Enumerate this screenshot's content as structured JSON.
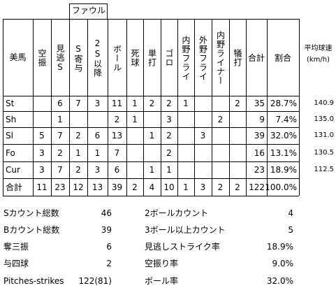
{
  "header": {
    "foul_label": "ファウル",
    "pitcher": "美馬",
    "columns": [
      "空振",
      "見逃S",
      "S寄与",
      "2S以降",
      "ボール",
      "死球",
      "単打",
      "ゴロ",
      "内野フライ",
      "外野フライ",
      "内野ライナー",
      "犠打",
      "合計",
      "割合"
    ],
    "avg_speed": "平均球速",
    "avg_speed_unit": "(km/h)"
  },
  "rows": [
    {
      "name": "St",
      "cells": [
        "",
        "6",
        "7",
        "3",
        "11",
        "1",
        "2",
        "2",
        "1",
        "",
        "",
        "2",
        "35",
        "28.7%"
      ],
      "speed": "140.9"
    },
    {
      "name": "Sh",
      "cells": [
        "",
        "1",
        "",
        "",
        "2",
        "1",
        "",
        "3",
        "",
        "",
        "2",
        "",
        "9",
        "7.4%"
      ],
      "speed": "135.0"
    },
    {
      "name": "Sl",
      "cells": [
        "5",
        "7",
        "2",
        "6",
        "13",
        "",
        "1",
        "2",
        "",
        "3",
        "",
        "",
        "39",
        "32.0%"
      ],
      "speed": "131.0"
    },
    {
      "name": "Fo",
      "cells": [
        "3",
        "2",
        "1",
        "1",
        "7",
        "",
        "",
        "2",
        "",
        "",
        "",
        "",
        "16",
        "13.1%"
      ],
      "speed": "130.5"
    },
    {
      "name": "Cur",
      "cells": [
        "3",
        "7",
        "2",
        "3",
        "6",
        "",
        "1",
        "1",
        "",
        "",
        "",
        "",
        "23",
        "18.9%"
      ],
      "speed": "112.5"
    },
    {
      "name": "合計",
      "cells": [
        "11",
        "23",
        "12",
        "13",
        "39",
        "2",
        "4",
        "10",
        "1",
        "3",
        "2",
        "2",
        "122",
        "100.0%"
      ],
      "speed": ""
    }
  ],
  "summary": [
    {
      "label": "Sカウント総数",
      "value": "46",
      "label2": "2ボールカウント",
      "value2": "4"
    },
    {
      "label": "Bカウント総数",
      "value": "39",
      "label2": "3ボール以上カウント",
      "value2": "5"
    },
    {
      "label": "奪三振",
      "value": "6",
      "label2": "見逃しストライク率",
      "value2": "18.9%"
    },
    {
      "label": "与四球",
      "value": "2",
      "label2": "空振り率",
      "value2": "9.0%"
    },
    {
      "label": "Pitches-strikes",
      "value": "122(81)",
      "label2": "ボール率",
      "value2": "32.0%"
    }
  ]
}
